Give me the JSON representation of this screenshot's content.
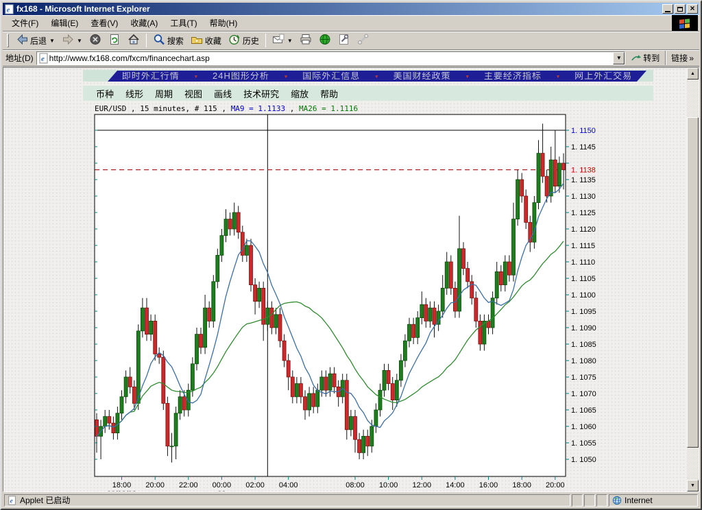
{
  "window": {
    "title": "fx168 - Microsoft Internet Explorer"
  },
  "menu_bar": {
    "items": [
      "文件(F)",
      "编辑(E)",
      "查看(V)",
      "收藏(A)",
      "工具(T)",
      "帮助(H)"
    ]
  },
  "toolbar": {
    "buttons": [
      {
        "id": "back",
        "label": "后退",
        "icon": "back-arrow",
        "dropdown": true
      },
      {
        "id": "forward",
        "label": "",
        "icon": "forward-arrow",
        "dropdown": true
      },
      {
        "id": "stop",
        "label": "",
        "icon": "stop"
      },
      {
        "id": "refresh",
        "label": "",
        "icon": "refresh"
      },
      {
        "id": "home",
        "label": "",
        "icon": "home",
        "sep_after": true
      },
      {
        "id": "search",
        "label": "搜索",
        "icon": "search"
      },
      {
        "id": "favorites",
        "label": "收藏",
        "icon": "favorites"
      },
      {
        "id": "history",
        "label": "历史",
        "icon": "history",
        "sep_after": true
      },
      {
        "id": "mail",
        "label": "",
        "icon": "mail",
        "dropdown": true
      },
      {
        "id": "print",
        "label": "",
        "icon": "printer"
      },
      {
        "id": "realtime-quotes",
        "label": "",
        "icon": "green-globe"
      },
      {
        "id": "edit",
        "label": "",
        "icon": "wrench"
      },
      {
        "id": "discuss",
        "label": "",
        "icon": "phone"
      }
    ]
  },
  "address_bar": {
    "label": "地址(D)",
    "url": "http://www.fx168.com/fxcm/financechart.asp",
    "go_label": "转到",
    "links_label": "链接",
    "links_chevron": "»"
  },
  "site_nav": {
    "items": [
      "即时外汇行情",
      "24H图形分析",
      "国际外汇信息",
      "美国财经政策",
      "主要经济指标",
      "网上外汇交易"
    ]
  },
  "chart_menu": {
    "items": [
      "币种",
      "线形",
      "周期",
      "视图",
      "画线",
      "技术研究",
      "缩放",
      "帮助"
    ]
  },
  "status_bar": {
    "left": "Applet 已启动",
    "right": "Internet"
  },
  "chart_data": {
    "type": "candlestick",
    "symbol": "EUR/USD",
    "interval": "15 minutes",
    "header": {
      "part1": "EUR/USD , 15 minutes, # 115 , ",
      "ma9": "MA9 = 1.1133",
      "sep": " , ",
      "ma26": "MA26 = 1.1116"
    },
    "ylim": [
      1.10448,
      1.11548
    ],
    "y_axis": {
      "min": 1.105,
      "max": 1.115,
      "step": 0.0005,
      "hidden_label": 1.114,
      "top_label_value": 1.115
    },
    "current_price": 1.1138,
    "drawn_hline_value": 1.115,
    "session_vline_index": 41,
    "x_ticks": [
      {
        "label": "18:00",
        "index": 6
      },
      {
        "label": "20:00",
        "index": 14
      },
      {
        "label": "22:00",
        "index": 22
      },
      {
        "label": "00:00",
        "index": 30
      },
      {
        "label": "02:00",
        "index": 38
      },
      {
        "label": "04:00",
        "index": 46
      },
      {
        "label": "08:00",
        "index": 62
      },
      {
        "label": "10:00",
        "index": 70
      },
      {
        "label": "12:00",
        "index": 78
      },
      {
        "label": "14:00",
        "index": 86
      },
      {
        "label": "16:00",
        "index": 94
      },
      {
        "label": "18:00",
        "index": 102
      },
      {
        "label": "20:00",
        "index": 110
      }
    ],
    "x_date_ticks": [
      {
        "label": "09/08/03",
        "index": 6
      },
      {
        "label": "09",
        "index": 30
      }
    ],
    "moving_averages": [
      {
        "name": "MA9",
        "period": 9,
        "color": "#3a6ea5",
        "last_value": 1.1133
      },
      {
        "name": "MA26",
        "period": 26,
        "color": "#2e8b2e",
        "last_value": 1.1116
      }
    ],
    "colors": {
      "up_fill": "#1e7d1e",
      "up_edge": "#0b4d0b",
      "down_fill": "#cc2a2a",
      "down_edge": "#7a1212",
      "wick": "#111111",
      "axis_tick": "#008080",
      "current_price_line": "#b22222",
      "drawn_line": "#000000",
      "top_label": "#0000cc",
      "current_price_label": "#cc0000"
    },
    "candles": [
      [
        1.1062,
        1.1064,
        1.1052,
        1.1057
      ],
      [
        1.1057,
        1.1062,
        1.105,
        1.106
      ],
      [
        1.106,
        1.1065,
        1.1058,
        1.1063
      ],
      [
        1.1063,
        1.1065,
        1.1059,
        1.1061
      ],
      [
        1.1061,
        1.1063,
        1.1056,
        1.1058
      ],
      [
        1.1058,
        1.1066,
        1.1056,
        1.1064
      ],
      [
        1.1064,
        1.1071,
        1.1062,
        1.1069
      ],
      [
        1.1069,
        1.1077,
        1.1067,
        1.1075
      ],
      [
        1.1075,
        1.1078,
        1.107,
        1.1072
      ],
      [
        1.1072,
        1.1074,
        1.1065,
        1.1067
      ],
      [
        1.1067,
        1.1091,
        1.1065,
        1.1089
      ],
      [
        1.1089,
        1.1099,
        1.1087,
        1.1096
      ],
      [
        1.1096,
        1.1099,
        1.1086,
        1.1088
      ],
      [
        1.1088,
        1.1094,
        1.1086,
        1.1092
      ],
      [
        1.1092,
        1.1094,
        1.108,
        1.1082
      ],
      [
        1.1082,
        1.1084,
        1.1079,
        1.1081
      ],
      [
        1.1081,
        1.1083,
        1.1065,
        1.1067
      ],
      [
        1.1067,
        1.1069,
        1.1051,
        1.1054
      ],
      [
        1.1054,
        1.1058,
        1.1049,
        1.1054
      ],
      [
        1.1054,
        1.1066,
        1.105,
        1.1064
      ],
      [
        1.1064,
        1.1071,
        1.1062,
        1.1069
      ],
      [
        1.1069,
        1.1071,
        1.1063,
        1.1065
      ],
      [
        1.1065,
        1.1073,
        1.1063,
        1.1071
      ],
      [
        1.1071,
        1.1081,
        1.1069,
        1.1079
      ],
      [
        1.1079,
        1.109,
        1.1077,
        1.1088
      ],
      [
        1.1088,
        1.109,
        1.1082,
        1.1084
      ],
      [
        1.1084,
        1.11,
        1.1082,
        1.1096
      ],
      [
        1.1096,
        1.1098,
        1.109,
        1.1092
      ],
      [
        1.1092,
        1.1106,
        1.109,
        1.1104
      ],
      [
        1.1104,
        1.1114,
        1.1102,
        1.1112
      ],
      [
        1.1112,
        1.112,
        1.111,
        1.1118
      ],
      [
        1.1118,
        1.1126,
        1.1116,
        1.1123
      ],
      [
        1.1123,
        1.1125,
        1.1118,
        1.112
      ],
      [
        1.112,
        1.1128,
        1.1118,
        1.1125
      ],
      [
        1.1125,
        1.1127,
        1.1117,
        1.1119
      ],
      [
        1.1119,
        1.1121,
        1.111,
        1.1112
      ],
      [
        1.1112,
        1.1117,
        1.111,
        1.1115
      ],
      [
        1.1115,
        1.1117,
        1.1101,
        1.1103
      ],
      [
        1.1103,
        1.1105,
        1.1094,
        1.1098
      ],
      [
        1.1098,
        1.1104,
        1.1096,
        1.1102
      ],
      [
        1.1102,
        1.1104,
        1.1086,
        1.1091
      ],
      [
        1.1091,
        1.1098,
        1.1089,
        1.1096
      ],
      [
        1.1096,
        1.1098,
        1.1088,
        1.109
      ],
      [
        1.109,
        1.1096,
        1.1088,
        1.1094
      ],
      [
        1.1094,
        1.1096,
        1.1084,
        1.1086
      ],
      [
        1.1086,
        1.1088,
        1.1078,
        1.108
      ],
      [
        1.108,
        1.1082,
        1.1071,
        1.1075
      ],
      [
        1.1075,
        1.1077,
        1.1067,
        1.1069
      ],
      [
        1.1069,
        1.1075,
        1.1067,
        1.1073
      ],
      [
        1.1073,
        1.1075,
        1.1067,
        1.1069
      ],
      [
        1.1069,
        1.1071,
        1.1062,
        1.1065
      ],
      [
        1.1065,
        1.1072,
        1.1063,
        1.107
      ],
      [
        1.107,
        1.1072,
        1.1064,
        1.1066
      ],
      [
        1.1066,
        1.1073,
        1.1064,
        1.1071
      ],
      [
        1.1071,
        1.1077,
        1.1069,
        1.1075
      ],
      [
        1.1075,
        1.1077,
        1.1069,
        1.1071
      ],
      [
        1.1071,
        1.1078,
        1.1069,
        1.1076
      ],
      [
        1.1076,
        1.1078,
        1.107,
        1.1072
      ],
      [
        1.1072,
        1.1074,
        1.1066,
        1.1069
      ],
      [
        1.1069,
        1.1076,
        1.1067,
        1.1074
      ],
      [
        1.1074,
        1.1076,
        1.1056,
        1.1059
      ],
      [
        1.1059,
        1.1065,
        1.1057,
        1.1063
      ],
      [
        1.1063,
        1.1065,
        1.1052,
        1.1056
      ],
      [
        1.1056,
        1.1058,
        1.105,
        1.1052
      ],
      [
        1.1052,
        1.1059,
        1.105,
        1.1057
      ],
      [
        1.1057,
        1.1059,
        1.1051,
        1.1054
      ],
      [
        1.1054,
        1.1062,
        1.1052,
        1.106
      ],
      [
        1.106,
        1.1067,
        1.1058,
        1.1065
      ],
      [
        1.1065,
        1.1073,
        1.1063,
        1.1071
      ],
      [
        1.1071,
        1.1079,
        1.1069,
        1.1077
      ],
      [
        1.1077,
        1.1079,
        1.1071,
        1.1073
      ],
      [
        1.1073,
        1.1075,
        1.1065,
        1.1068
      ],
      [
        1.1068,
        1.1076,
        1.1066,
        1.1074
      ],
      [
        1.1074,
        1.1082,
        1.1072,
        1.108
      ],
      [
        1.108,
        1.1088,
        1.1078,
        1.1086
      ],
      [
        1.1086,
        1.1093,
        1.1084,
        1.1091
      ],
      [
        1.1091,
        1.1093,
        1.1085,
        1.1087
      ],
      [
        1.1087,
        1.1095,
        1.1085,
        1.1093
      ],
      [
        1.1093,
        1.1101,
        1.1091,
        1.1097
      ],
      [
        1.1097,
        1.1099,
        1.109,
        1.1092
      ],
      [
        1.1092,
        1.1098,
        1.109,
        1.1096
      ],
      [
        1.1096,
        1.1098,
        1.1087,
        1.1091
      ],
      [
        1.1091,
        1.1097,
        1.1089,
        1.1095
      ],
      [
        1.1095,
        1.1106,
        1.1093,
        1.1102
      ],
      [
        1.1102,
        1.1113,
        1.11,
        1.111
      ],
      [
        1.111,
        1.1112,
        1.11,
        1.1102
      ],
      [
        1.1102,
        1.1104,
        1.1093,
        1.1095
      ],
      [
        1.1095,
        1.1124,
        1.1093,
        1.1114
      ],
      [
        1.1114,
        1.1116,
        1.1106,
        1.1108
      ],
      [
        1.1108,
        1.111,
        1.1102,
        1.1104
      ],
      [
        1.1104,
        1.1106,
        1.1097,
        1.1099
      ],
      [
        1.1099,
        1.1101,
        1.109,
        1.1092
      ],
      [
        1.1092,
        1.1094,
        1.1083,
        1.1085
      ],
      [
        1.1085,
        1.1094,
        1.1083,
        1.1092
      ],
      [
        1.1092,
        1.1094,
        1.1088,
        1.109
      ],
      [
        1.109,
        1.1101,
        1.1088,
        1.1099
      ],
      [
        1.1099,
        1.111,
        1.1097,
        1.1107
      ],
      [
        1.1107,
        1.1109,
        1.1101,
        1.1103
      ],
      [
        1.1103,
        1.1112,
        1.1101,
        1.111
      ],
      [
        1.111,
        1.1112,
        1.1104,
        1.1106
      ],
      [
        1.1106,
        1.1128,
        1.1104,
        1.1123
      ],
      [
        1.1123,
        1.1138,
        1.1121,
        1.1135
      ],
      [
        1.1135,
        1.1137,
        1.1128,
        1.113
      ],
      [
        1.113,
        1.1132,
        1.112,
        1.1122
      ],
      [
        1.1122,
        1.1124,
        1.1113,
        1.1116
      ],
      [
        1.1116,
        1.113,
        1.1114,
        1.1128
      ],
      [
        1.1128,
        1.1147,
        1.1126,
        1.1143
      ],
      [
        1.1143,
        1.1152,
        1.1134,
        1.1136
      ],
      [
        1.1136,
        1.1138,
        1.1128,
        1.113
      ],
      [
        1.113,
        1.1145,
        1.1128,
        1.1141
      ],
      [
        1.1141,
        1.115,
        1.1131,
        1.1133
      ],
      [
        1.1133,
        1.1142,
        1.1131,
        1.114
      ],
      [
        1.114,
        1.1143,
        1.1132,
        1.1138
      ]
    ]
  }
}
